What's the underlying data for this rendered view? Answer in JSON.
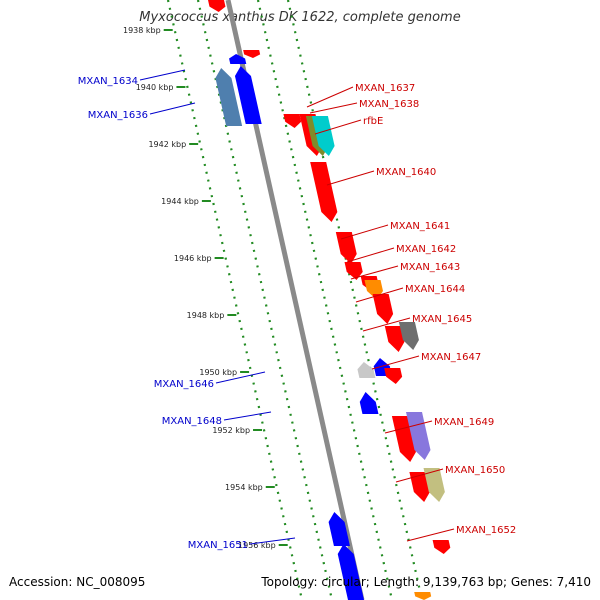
{
  "title": "Myxococcus xanthus DK 1622, complete genome",
  "footer": {
    "accession": "Accession: NC_008095",
    "topology": "Topology: circular; Length: 9,139,763 bp; Genes: 7,410"
  },
  "colors": {
    "backbone": "#8a8a8a",
    "track_dots": "#228b22",
    "forward_label": "#cc0000",
    "reverse_label": "#0000cc",
    "red": "#ff0000",
    "blue": "#0000ff",
    "orange": "#ff8c00",
    "cyan": "#00cccc",
    "olive": "#7f8b2a",
    "steel": "#4f7fae",
    "gray": "#6e6e6e",
    "lightgray": "#c8c8c8",
    "lavender": "#8877dd",
    "khaki": "#c2bf80"
  },
  "kbp_ticks": [
    "1938 kbp",
    "1940 kbp",
    "1942 kbp",
    "1944 kbp",
    "1946 kbp",
    "1948 kbp",
    "1950 kbp",
    "1952 kbp",
    "1954 kbp",
    "1956 kbp"
  ],
  "forward_labels": [
    "MXAN_1637",
    "MXAN_1638",
    "rfbE",
    "MXAN_1640",
    "MXAN_1641",
    "MXAN_1642",
    "MXAN_1643",
    "MXAN_1644",
    "MXAN_1645",
    "MXAN_1647",
    "MXAN_1649",
    "MXAN_1650",
    "MXAN_1652"
  ],
  "reverse_labels": [
    "MXAN_1634",
    "MXAN_1636",
    "MXAN_1646",
    "MXAN_1648",
    "MXAN_1651"
  ],
  "features": [
    {
      "strand": "+",
      "color": "red"
    },
    {
      "strand": "+",
      "color": "red"
    },
    {
      "strand": "-",
      "color": "blue"
    },
    {
      "strand": "-",
      "color": "steel"
    },
    {
      "strand": "-",
      "color": "blue"
    },
    {
      "strand": "+",
      "color": "red"
    },
    {
      "strand": "+",
      "color": "red"
    },
    {
      "strand": "+",
      "color": "olive"
    },
    {
      "strand": "+",
      "color": "cyan"
    },
    {
      "strand": "+",
      "color": "red"
    },
    {
      "strand": "+",
      "color": "red"
    },
    {
      "strand": "+",
      "color": "red"
    },
    {
      "strand": "+",
      "color": "red"
    },
    {
      "strand": "+",
      "color": "orange"
    },
    {
      "strand": "+",
      "color": "red"
    },
    {
      "strand": "+",
      "color": "red"
    },
    {
      "strand": "+",
      "color": "gray"
    },
    {
      "strand": "-",
      "color": "lightgray"
    },
    {
      "strand": "-",
      "color": "blue"
    },
    {
      "strand": "+",
      "color": "red"
    },
    {
      "strand": "-",
      "color": "blue"
    },
    {
      "strand": "+",
      "color": "red"
    },
    {
      "strand": "+",
      "color": "lavender"
    },
    {
      "strand": "+",
      "color": "red"
    },
    {
      "strand": "+",
      "color": "khaki"
    },
    {
      "strand": "-",
      "color": "blue"
    },
    {
      "strand": "+",
      "color": "red"
    },
    {
      "strand": "-",
      "color": "blue"
    },
    {
      "strand": "+",
      "color": "orange"
    }
  ]
}
